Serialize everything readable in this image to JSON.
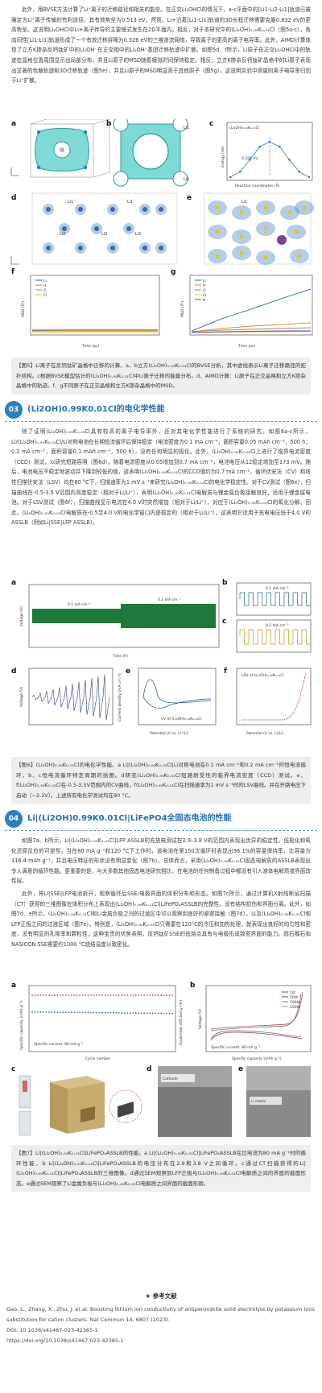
{
  "para1": "此外，用BVSE方法计算了Li⁺离子的迁移路径和相关的能垒。在正交Li₂OHCl的情况下，a-c平面中的[Li1-Li2-Li1]轨道已被确定为Li⁺离子传输的有利途径，其有效势垒为0.513 eV。然而，Li+沿着[Li1-Li1]轨道的3D长程迁移需要克服0.832 eV的更高势垒。这说明Li₂OHCl中Li+离子传导的主要模式发生在2D平面内。相反，对于本研究中的(Li₂OH)₀.₉₉K₀.₀₁Cl（图5a-c），各向同性[Li1-Li1]轨道形成了一个有效迁移屏障为0.326 eV的三维渗流网络，导致离子的更高的离子电导率。此外，AIMD计算体现了立方K掺杂反钙钛矿中的Li₂OH⁻在正交相中的Li₂OH⁻基团迁移轨迹中扩散。如图5d、f所示，Li原子在正交Li₂OHCl中的轨迹在晶格位置周围显示出局部分布，并且Li原子的MSD随着模拟时间保持稳定。相反，立方K掺杂反钙钛矿晶格中的Li原子表现出显著的色散轨迹和3D迁移轨迹（图5e），并且Li原子的MSD明显高于其他原子（图5g）。这说明实验中测量的离子电导率归因于Li⁺扩散。",
  "fig5_caption": "【图5】Li离子在反钙钛矿晶格中迁移的计算。a、b立方(Li₂OH)₀.₉₉K₀.₀₁Cl的BVSE分析，其中虚线表示Li离子迁移路径的拓扑结构。c根据BVSE模型估计的(Li₂OH)₀.₉₉K₀.₀₁Cl中Li离子迁移的能量分布。d、AIMD计算：Li原子在正交晶格和立方K掺杂晶格中的轨迹。f、g不同原子在正交晶格和立方K掺杂晶格中的MSD。",
  "sec03": {
    "num": "03",
    "title": "(Li2OH)0.99K0.01Cl的电化学性能"
  },
  "para2": "除了证明(Li₂OH)₀.₉₉K₀.₀₁Cl具有较高的离子电导率外，还对其电化学性能进行了系统的研究。如图6a-c所示，Li/(Li₂OH)₀.₉₉K₀.₀₁Cl/Li对称电池在长期恒流循环后保持稳定（电流密度为0.1 mA cm⁻²，面积容量0.05 mAh cm⁻²，500 h；0.2 mA cm⁻²，面积容量0.1 mAh cm⁻²，500 h），没有任何明显的极化。此外，(Li₂OH)₀.₉₉K₀.₀₁Cl上进行了临界电流密度（CCD）测试，以研究短路容限（图6d）。随着电流密度从0.05增加到0.7 mA cm⁻²，电池电压从12稳定增加至173 mV。随后，电池电压不稳定地波动并下降到较低的值，这表明(Li₂OH)₀.₉₉K₀.₀₁Cl的CCD值约为0.7 mA cm⁻²。循环伏安法（CV）和线性扫描伏安法（LSV）均在80 °C下，扫描速率为1 mV s⁻¹来研究(Li₂OH)₀.₉₉K₀.₀₁Cl的电化学稳定性。对于CV测试（图6e），扫描曲线在-0.5-3.5 V范围内高度稳定（相对于Li/Li⁺），表明(Li₂OH)₀.₉₉K₀.₀₁Cl电解质与锂金属负极接触良好，适用于锂金属电池。对于LSV测试（图6f），扫描曲线显示电流在4.0 V时突然增加（相对于Li/Li⁺），对应于(Li₂OH)₀.₉₉K₀.₀₁Cl的氧化分解。因此，(Li₂OH)₀.₉₉K₀.₀₁Cl电解质在-0.5至4.0 V的电化学窗口内是稳定的（相对于Li/Li⁺），这表明它适用于充电电压低于4.0 V的ASSLB（例如Li|SSE|LFP ASSLB）。",
  "fig6_caption": "【图6】(Li₂OH)₀.₉₉K₀.₀₁Cl的电化学性能。a Li|(Li₂OH)₀.₉₉K₀.₀₁Cl|Li对称电池在0.1 mA cm⁻²和0.2 mA cm⁻²的恒电流循环，b、c恒电流循环特定周期的插图。d研究(Li₂OH)₀.₉₉K₀.₀₁Cl短路耐受性的临界电流密度（CCD）测试。e、f(Li₂OH)₀.₉₉K₀.₀₁Cl在-0.5-3.5V范围内的CV曲线，f(Li₂OH)₀.₉₉K₀.₀₁Cl在扫描速率为1 mV s⁻¹时的LSV曲线。并在开路电压下启动（~2.1V）。上述所有电化学测试均在80 °C。",
  "sec04": {
    "num": "04",
    "title": "Li|(Li2OH)0.99K0.01Cl|LiFePO4全固态电池的性能"
  },
  "para3": "如图7a、b所示，Li|(Li₂OH)₀.₉₉K₀.₀₁Cl|LFP ASSLB的充放电测试在2.9–3.8 V的范围内表现出优异的稳定性。低极化和氧化还原反应的可逆性。当在80 mA g⁻¹和120 °C下工作时，该电池在第150次循环时表现出96.1%的容量保持率，比容量为116.4 mAh g⁻¹，并且电压特征的形状没有明显变化（图7b）。总体而言，采用(Li₂OH)₀.₉₉K₀.₀₁Cl固态电解质的ASSLB表现出令人满意的循环性能。更重要的是，与大多数其他固态电池研究相比，在电池的任何制备过程中都没有引入液体电解质或界面改性层。",
  "para4": "此外，将Li|SSE|LFP电池拆开，观察循环后SSE/电极界面的体积分布和形态。如图7c所示，通过计算机X射线断层扫描（CT）获得的三维图像在体积分布上表现出(Li₂OH)₀.₉₉K₀.₀₁Cl|LiFePO₄ASSLB的完整性。没有结构损伤和界面分离。此外，如图7d、e所示，(Li₂OH)₀.₉₉K₀.₀₁Cl和Li金属负极之间的过渡区中可以观察到良好的紧密接触（图7d），以及(Li₂OH)₀.₉₉K₀.₀₁Cl和LFP正极之间的过渡区域（图7e）。特别是，(Li₂OH)₀.₉₉K₀.₀₁Cl只需要在120°C的冷压和加热处理，就表现出良好的均匀性和密度，没有明显的孔隙率和颗粒性，这种宝贵的优势表明，反钙钛矿SSE的低熔点具有与电极形成致密界面的能力。而石榴石和NASICON SSE需要约1000 °C烧结温度以致密化。",
  "fig7_caption": "【图7】Li|(Li₂OH)₀.₉₉K₀.₀₁Cl|LiFePO₄ASSLB的性能。a Li|(Li₂OH)₀.₉₉K₀.₀₁Cl|LiFePO₄ASSLB在比电流为80 mA g⁻¹时的循环性能，b Li|(Li₂OH)₀.₉₉K₀.₀₁Cl|LiFePO₄ASSLB的电压分布在2.9和3.8 V之间循环。c通过CT扫描获得的Li|(Li₂OH)₀.₉₉K₀.₀₁Cl|LiFePO₄ASSLB的三维图像。d通过SEM观察到LFP正极与(Li₂OH)₀.₉₉K₀.₀₁Cl电解质之间的界面的截面形态。e通过SEM观察了Li金属负极与(Li₂OH)₀.₉₉K₀.₀₁Cl电解质之间界面的截面形貌。",
  "refs": {
    "heading": "参考文献",
    "line1": "Gao, L., Zhang, X., Zhu, J. et al. Boosting lithium ion conductivity of antiperovskite solid electrolyte by potassium ions substitution for cation clusters. Nat Commun 14, 6807 (2023).",
    "line2": "DOI: 10.1038/s41467-023-42385-1",
    "line3": "https://doi.org/10.1038/s41467-023-42385-1"
  },
  "fig5": {
    "panel_a": "a",
    "panel_b": "b",
    "panel_c": "c",
    "panel_d": "d",
    "panel_e": "e",
    "panel_f": "f",
    "panel_g": "g",
    "li1": "Li1",
    "li2": "Li2",
    "energy_label": "0.326 eV",
    "c_title": "(Li₂OH)₀.₉₉K₀.₀₁Cl",
    "c_xlabel": "Reaction coordinates (Å)",
    "c_ylabel": "Energy (eV)",
    "msd_ylabel": "MSD (Å²)",
    "time_label": "Time (ps)",
    "legend": [
      "Li",
      "H",
      "O",
      "Cl",
      "K"
    ],
    "colors": {
      "Li": "#1f5fbf",
      "H": "#e08a1a",
      "O": "#8c8c8c",
      "Cl": "#e3c619",
      "K": "#7a3fa0"
    }
  },
  "fig6": {
    "panel_a": "a",
    "panel_b": "b",
    "panel_c": "c",
    "panel_d": "d",
    "panel_e": "e",
    "panel_f": "f",
    "label_01": "0.1 mA cm⁻²",
    "label_02": "0.2 mA cm⁻²",
    "a_ylabel": "Voltage (V)",
    "a_xlabel": "Time (h)",
    "cv_label": "CV of (Li₂OH)₀.₉₉K₀.₀₁Cl",
    "lsv_label": "LSV of (Li₂OH)₀.₉₉K₀.₀₁Cl",
    "e_xlabel": "Potential (V vs. Li⁺/Li)",
    "f_xlabel": "Potential (V vs. Li/Li)",
    "d_ylabel": "Voltage (V)",
    "d_y2label": "Current density (mA cm⁻²)"
  },
  "fig7": {
    "panel_a": "a",
    "panel_b": "b",
    "panel_c": "c",
    "panel_d": "d",
    "panel_e": "e",
    "a_ylabel": "Specific capacity (mAh g⁻¹)",
    "a_y2label": "Coulombic efficiency (%)",
    "a_xlabel": "Cycle number",
    "a_note": "Specific current: 80 mA g⁻¹",
    "b_ylabel": "Voltage (V)",
    "b_xlabel": "Specific capacity (mAh g⁻¹)",
    "b_note": "Specific current: 80 mA g⁻¹",
    "b_legend": [
      "1st",
      "50th",
      "100th",
      "150th"
    ],
    "cathode": "Cathode",
    "li_metal": "Li metal"
  },
  "chart_data": [
    {
      "type": "line",
      "title": "",
      "xlabel": "Reaction coordinates (Å)",
      "ylabel": "Energy (eV)",
      "x": [
        0,
        0.25,
        0.5,
        0.75,
        1.0,
        1.25,
        1.5,
        1.75,
        2.0
      ],
      "values": [
        0.0,
        0.05,
        0.16,
        0.28,
        0.326,
        0.28,
        0.16,
        0.05,
        0.0
      ],
      "xlim": [
        0,
        2
      ],
      "ylim": [
        0,
        0.4
      ]
    },
    {
      "type": "line",
      "xlabel": "Time (ps)",
      "ylabel": "MSD (Å²)",
      "x": [
        0,
        15,
        30,
        45,
        60
      ],
      "series": [
        {
          "name": "Li",
          "values": [
            0.4,
            0.42,
            0.42,
            0.42,
            0.42
          ]
        },
        {
          "name": "H",
          "values": [
            0.32,
            0.33,
            0.33,
            0.33,
            0.33
          ]
        },
        {
          "name": "O",
          "values": [
            0.28,
            0.28,
            0.28,
            0.28,
            0.28
          ]
        },
        {
          "name": "Cl",
          "values": [
            0.12,
            0.12,
            0.12,
            0.12,
            0.12
          ]
        }
      ],
      "xlim": [
        0,
        60
      ],
      "ylim": [
        0,
        7
      ]
    },
    {
      "type": "line",
      "xlabel": "Time (ps)",
      "ylabel": "MSD (Å²)",
      "x": [
        0,
        15,
        30,
        45,
        60
      ],
      "series": [
        {
          "name": "Li",
          "values": [
            0.3,
            1.8,
            3.0,
            4.3,
            5.5
          ]
        },
        {
          "name": "H",
          "values": [
            0.2,
            0.6,
            0.9,
            1.1,
            1.3
          ]
        },
        {
          "name": "O",
          "values": [
            0.2,
            0.4,
            0.5,
            0.6,
            0.7
          ]
        },
        {
          "name": "Cl",
          "values": [
            0.1,
            0.15,
            0.2,
            0.2,
            0.25
          ]
        },
        {
          "name": "K",
          "values": [
            0.1,
            0.2,
            0.25,
            0.3,
            0.3
          ]
        }
      ],
      "xlim": [
        0,
        60
      ],
      "ylim": [
        0,
        7
      ]
    },
    {
      "type": "line",
      "xlabel": "Cycle number",
      "ylabel": "Specific capacity (mAh g⁻¹)",
      "x": [
        0,
        50,
        100,
        150
      ],
      "series": [
        {
          "name": "Specific capacity",
          "values": [
            121,
            120,
            118,
            116.4
          ]
        },
        {
          "name": "Coulombic efficiency",
          "values": [
            99,
            99.5,
            99.6,
            99.6
          ]
        }
      ],
      "xlim": [
        0,
        150
      ],
      "ylim": [
        0,
        200
      ]
    }
  ]
}
